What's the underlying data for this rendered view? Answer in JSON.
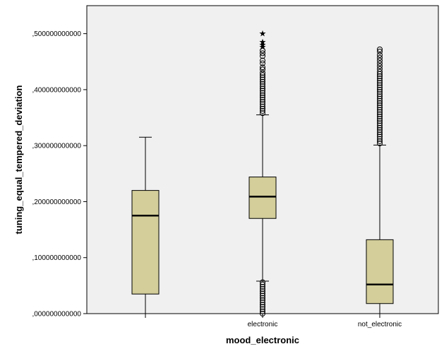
{
  "chart_data": {
    "type": "boxplot",
    "xlabel": "mood_electronic",
    "ylabel": "tuning_equal_tempered_deviation",
    "ylim": [
      0,
      0.55
    ],
    "y_ticks": [
      0.0,
      0.1,
      0.2,
      0.3,
      0.4,
      0.5
    ],
    "y_tick_labels": [
      ",000000000000",
      ",100000000000",
      ",200000000000",
      ",300000000000",
      ",400000000000",
      ",500000000000"
    ],
    "categories": [
      "",
      "electronic",
      "not_electronic"
    ],
    "grid": false,
    "colors": {
      "plot_bg": "#f0f0f0",
      "box_fill": "#d3ce9a",
      "line": "#000000"
    },
    "boxes": [
      {
        "category": "",
        "whisker_low": 0.0,
        "q1": 0.035,
        "median": 0.175,
        "q3": 0.22,
        "whisker_high": 0.315,
        "outliers": [],
        "extremes": []
      },
      {
        "category": "electronic",
        "whisker_low": 0.058,
        "q1": 0.17,
        "median": 0.209,
        "q3": 0.244,
        "whisker_high": 0.355,
        "outliers": [
          0.0,
          0.004,
          0.008,
          0.012,
          0.016,
          0.02,
          0.024,
          0.028,
          0.032,
          0.036,
          0.04,
          0.044,
          0.048,
          0.052,
          0.056,
          0.358,
          0.362,
          0.366,
          0.37,
          0.374,
          0.378,
          0.382,
          0.386,
          0.39,
          0.394,
          0.398,
          0.402,
          0.406,
          0.41,
          0.414,
          0.418,
          0.422,
          0.426,
          0.43,
          0.436,
          0.44,
          0.447,
          0.452,
          0.46,
          0.465,
          0.47
        ],
        "extremes": [
          0.476,
          0.48,
          0.485,
          0.5
        ]
      },
      {
        "category": "not_electronic",
        "whisker_low": 0.0,
        "q1": 0.018,
        "median": 0.052,
        "q3": 0.132,
        "whisker_high": 0.301,
        "outliers": [
          0.304,
          0.308,
          0.312,
          0.316,
          0.32,
          0.324,
          0.328,
          0.332,
          0.336,
          0.34,
          0.344,
          0.348,
          0.352,
          0.356,
          0.36,
          0.364,
          0.368,
          0.372,
          0.376,
          0.38,
          0.384,
          0.388,
          0.392,
          0.396,
          0.4,
          0.404,
          0.408,
          0.412,
          0.416,
          0.42,
          0.424,
          0.428,
          0.432,
          0.437,
          0.442,
          0.447,
          0.452,
          0.457,
          0.462,
          0.468,
          0.472
        ],
        "extremes": []
      }
    ]
  }
}
